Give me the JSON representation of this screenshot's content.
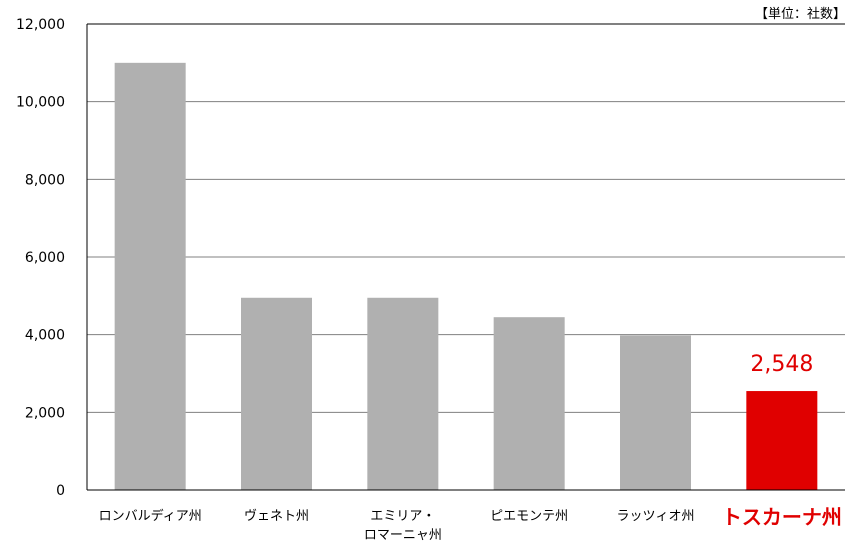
{
  "chart_data": {
    "type": "bar",
    "unit_label": "【単位：社数】",
    "categories": [
      [
        "ロンバルディア州"
      ],
      [
        "ヴェネト州"
      ],
      [
        "エミリア・",
        "ロマーニャ州"
      ],
      [
        "ピエモンテ州"
      ],
      [
        "ラッツィオ州"
      ],
      [
        "トスカーナ州"
      ]
    ],
    "values": [
      11000,
      4950,
      4950,
      4450,
      3980,
      2548
    ],
    "highlight_index": 5,
    "highlight_label": "2,548",
    "ylim": [
      0,
      12000
    ],
    "yticks": [
      0,
      2000,
      4000,
      6000,
      8000,
      10000,
      12000
    ],
    "ytick_labels": [
      "0",
      "2,000",
      "4,000",
      "6,000",
      "8,000",
      "10,000",
      "12,000"
    ],
    "grid": true,
    "colors": {
      "bar": "#b0b0b0",
      "highlight": "#e00000",
      "grid": "#808080",
      "axis": "#000000"
    }
  }
}
